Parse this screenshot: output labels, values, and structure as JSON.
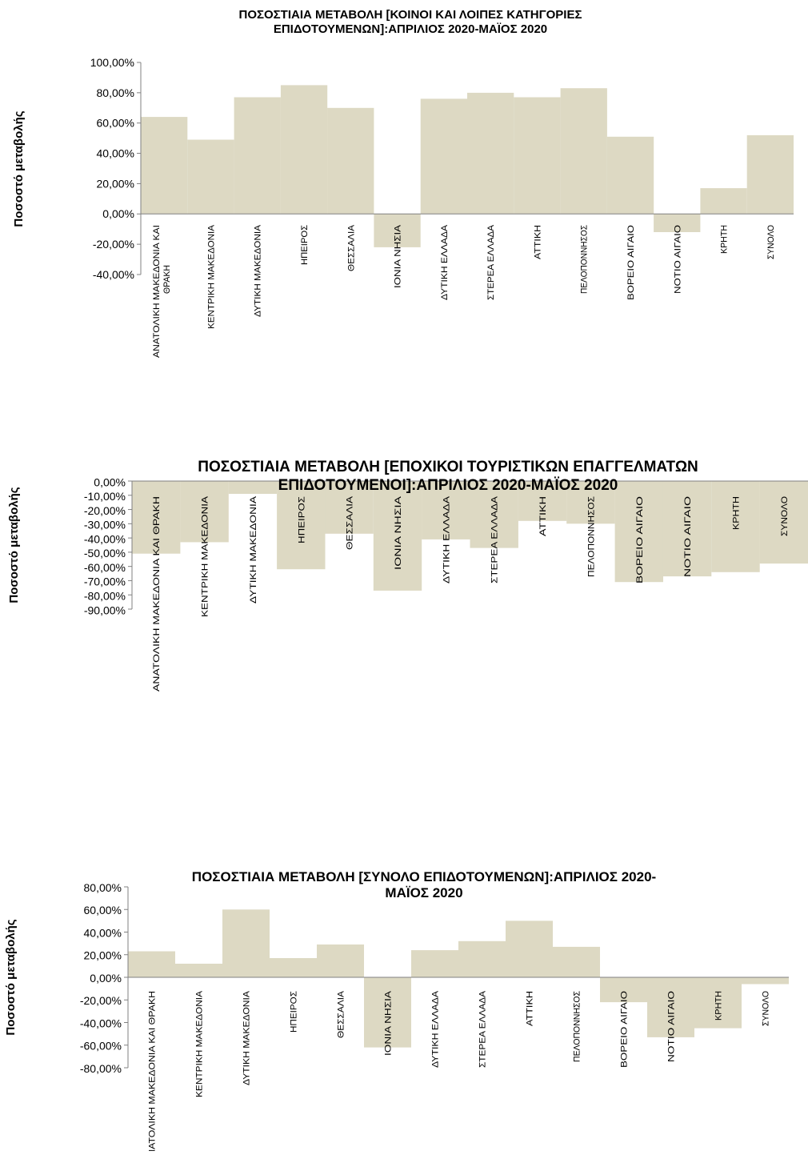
{
  "chart_data": [
    {
      "type": "bar",
      "title": [
        "ΠΟΣΟΣΤΙΑΙΑ ΜΕΤΑΒΟΛΗ [ΚΟΙΝΟΙ ΚΑΙ ΛΟΙΠΕΣ ΚΑΤΗΓΟΡΙΕΣ",
        "ΕΠΙΔΟΤΟΥΜΕΝΩΝ]:ΑΠΡΙΛΙΟΣ 2020-ΜΑΪΟΣ  2020"
      ],
      "ylabel": "Ποσοστό μεταβολής",
      "ylim": [
        -40,
        100
      ],
      "yticks": [
        "100,00%",
        "80,00%",
        "60,00%",
        "40,00%",
        "20,00%",
        "0,00%",
        "-20,00%",
        "-40,00%"
      ],
      "categories": [
        [
          "ΑΝΑΤΟΛΙΚΗ ΜΑΚΕΔΟΝΙΑ ΚΑΙ",
          "ΘΡΑΚΗ"
        ],
        [
          "ΚΕΝΤΡΙΚΗ ΜΑΚΕΔΟΝΙΑ"
        ],
        [
          "ΔΥΤΙΚΗ ΜΑΚΕΔΟΝΙΑ"
        ],
        [
          "ΗΠΕΙΡΟΣ"
        ],
        [
          "ΘΕΣΣΑΛΙΑ"
        ],
        [
          "ΙΟΝΙΑ ΝΗΣΙΑ"
        ],
        [
          "ΔΥΤΙΚΗ ΕΛΛΑΔΑ"
        ],
        [
          "ΣΤΕΡΕΑ ΕΛΛΑΔΑ"
        ],
        [
          "ΑΤΤΙΚΗ"
        ],
        [
          "ΠΕΛΟΠΟΝΝΗΣΟΣ"
        ],
        [
          "ΒΟΡΕΙΟ ΑΙΓΑΙΟ"
        ],
        [
          "ΝΟΤΙΟ ΑΙΓΑΙΟ"
        ],
        [
          "ΚΡΗΤΗ"
        ],
        [
          "ΣΥΝΟΛΟ"
        ]
      ],
      "values": [
        64,
        49,
        77,
        85,
        70,
        -22,
        76,
        80,
        77,
        83,
        51,
        -12,
        17,
        52
      ]
    },
    {
      "type": "bar",
      "title": [
        "ΠΟΣΟΣΤΙΑΙΑ ΜΕΤΑΒΟΛΗ [ΕΠΟΧΙΚΟΙ ΤΟΥΡΙΣΤΙΚΩΝ ΕΠΑΓΓΕΛΜΑΤΩΝ",
        "ΕΠΙΔΟΤΟΥΜΕΝΟΙ]:ΑΠΡΙΛΙΟΣ 2020-ΜΑΪΟΣ 2020"
      ],
      "ylabel": "Ποσοστό μεταβολής",
      "ylim": [
        -90,
        0
      ],
      "yticks": [
        "0,00%",
        "-10,00%",
        "-20,00%",
        "-30,00%",
        "-40,00%",
        "-50,00%",
        "-60,00%",
        "-70,00%",
        "-80,00%",
        "-90,00%"
      ],
      "categories": [
        [
          "ΑΝΑΤΟΛΙΚΗ ΜΑΚΕΔΟΝΙΑ ΚΑΙ ΘΡΑΚΗ"
        ],
        [
          "ΚΕΝΤΡΙΚΗ ΜΑΚΕΔΟΝΙΑ"
        ],
        [
          "ΔΥΤΙΚΗ ΜΑΚΕΔΟΝΙΑ"
        ],
        [
          "ΗΠΕΙΡΟΣ"
        ],
        [
          "ΘΕΣΣΑΛΙΑ"
        ],
        [
          "ΙΟΝΙΑ ΝΗΣΙΑ"
        ],
        [
          "ΔΥΤΙΚΗ ΕΛΛΑΔΑ"
        ],
        [
          "ΣΤΕΡΕΑ ΕΛΛΑΔΑ"
        ],
        [
          "ΑΤΤΙΚΗ"
        ],
        [
          "ΠΕΛΟΠΟΝΝΗΣΟΣ"
        ],
        [
          "ΒΟΡΕΙΟ ΑΙΓΑΙΟ"
        ],
        [
          "ΝΟΤΙΟ ΑΙΓΑΙΟ"
        ],
        [
          "ΚΡΗΤΗ"
        ],
        [
          "ΣΥΝΟΛΟ"
        ]
      ],
      "values": [
        -51,
        -43,
        -9,
        -62,
        -37,
        -77,
        -41,
        -47,
        -28,
        -30,
        -71,
        -67,
        -64,
        -58
      ]
    },
    {
      "type": "bar",
      "title": [
        "ΠΟΣΟΣΤΙΑΙΑ ΜΕΤΑΒΟΛΗ [ΣΥΝΟΛΟ ΕΠΙΔΟΤΟΥΜΕΝΩΝ]:ΑΠΡΙΛΙΟΣ 2020-",
        "ΜΑΪΟΣ 2020"
      ],
      "ylabel": "Ποσοστό μεταβολής",
      "ylim": [
        -80,
        80
      ],
      "yticks": [
        "80,00%",
        "60,00%",
        "40,00%",
        "20,00%",
        "0,00%",
        "-20,00%",
        "-40,00%",
        "-60,00%",
        "-80,00%"
      ],
      "categories": [
        [
          "ΑΝΑΤΟΛΙΚΗ ΜΑΚΕΔΟΝΙΑ ΚΑΙ ΘΡΑΚΗ"
        ],
        [
          "ΚΕΝΤΡΙΚΗ ΜΑΚΕΔΟΝΙΑ"
        ],
        [
          "ΔΥΤΙΚΗ ΜΑΚΕΔΟΝΙΑ"
        ],
        [
          "ΗΠΕΙΡΟΣ"
        ],
        [
          "ΘΕΣΣΑΛΙΑ"
        ],
        [
          "ΙΟΝΙΑ ΝΗΣΙΑ"
        ],
        [
          "ΔΥΤΙΚΗ ΕΛΛΑΔΑ"
        ],
        [
          "ΣΤΕΡΕΑ ΕΛΛΑΔΑ"
        ],
        [
          "ΑΤΤΙΚΗ"
        ],
        [
          "ΠΕΛΟΠΟΝΝΗΣΟΣ"
        ],
        [
          "ΒΟΡΕΙΟ ΑΙΓΑΙΟ"
        ],
        [
          "ΝΟΤΙΟ ΑΙΓΑΙΟ"
        ],
        [
          "ΚΡΗΤΗ"
        ],
        [
          "ΣΥΝΟΛΟ"
        ]
      ],
      "values": [
        23,
        12,
        60,
        17,
        29,
        -62,
        24,
        32,
        50,
        27,
        -22,
        -53,
        -45,
        -6
      ]
    }
  ],
  "colors": {
    "bar": "#ddd9c3",
    "axis": "#808080",
    "text": "#000000"
  }
}
